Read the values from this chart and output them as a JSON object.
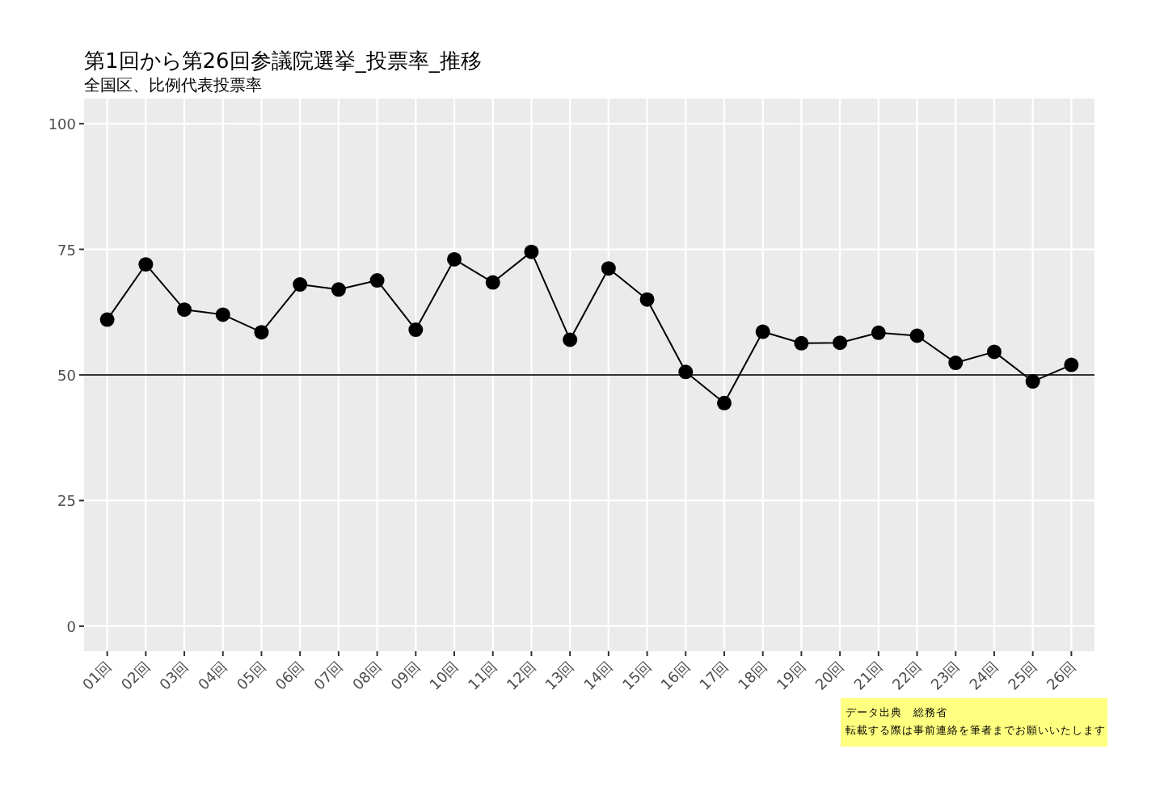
{
  "chart_data": {
    "type": "line",
    "title": "第1回から第26回参議院選挙_投票率_推移",
    "subtitle": "全国区、比例代表投票率",
    "categories": [
      "01回",
      "02回",
      "03回",
      "04回",
      "05回",
      "06回",
      "07回",
      "08回",
      "09回",
      "10回",
      "11回",
      "12回",
      "13回",
      "14回",
      "15回",
      "16回",
      "17回",
      "18回",
      "19回",
      "20回",
      "21回",
      "22回",
      "23回",
      "24回",
      "25回",
      "26回"
    ],
    "series": [
      {
        "color": "#000000",
        "values": [
          61,
          72,
          63,
          62,
          58.5,
          68,
          67,
          68.8,
          59,
          73,
          68.4,
          74.5,
          57,
          71.2,
          65,
          50.6,
          44.4,
          58.6,
          56.3,
          56.4,
          58.4,
          57.8,
          52.4,
          54.6,
          48.7,
          52
        ]
      }
    ],
    "ylim": [
      -5,
      105
    ],
    "yticks": [
      0,
      25,
      50,
      75,
      100
    ],
    "grid": true,
    "marker": "circle",
    "line_style": "solid",
    "ref_lines": [
      {
        "axis": "y",
        "value": 50,
        "color": "#333333"
      }
    ],
    "annotations": [
      "データ出典　総務省",
      "転載する際は事前連絡を筆者までお願いいたします"
    ]
  }
}
